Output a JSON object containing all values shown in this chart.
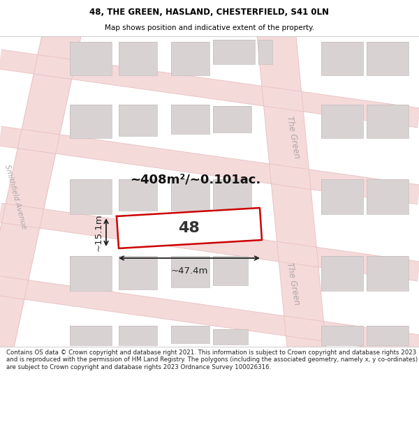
{
  "title_line1": "48, THE GREEN, HASLAND, CHESTERFIELD, S41 0LN",
  "title_line2": "Map shows position and indicative extent of the property.",
  "area_label": "~408m²/~0.101ac.",
  "property_number": "48",
  "width_label": "~47.4m",
  "height_label": "~15.1m",
  "street_left": "Smithfield Avenue",
  "street_right1": "The Green",
  "street_right2": "The Green",
  "footer_text": "Contains OS data © Crown copyright and database right 2021. This information is subject to Crown copyright and database rights 2023 and is reproduced with the permission of HM Land Registry. The polygons (including the associated geometry, namely x, y co-ordinates) are subject to Crown copyright and database rights 2023 Ordnance Survey 100026316.",
  "map_bg": "#f0ecea",
  "road_fill": "#f5dada",
  "road_line": "#e8c0c0",
  "bldg_fill": "#d9d2d2",
  "bldg_edge": "#c4bcbc",
  "property_fill": "#ffffff",
  "property_edge": "#cc0000",
  "dim_color": "#222222",
  "title_color": "#000000",
  "street_label_color": "#b0a8a8",
  "footer_color": "#222222"
}
